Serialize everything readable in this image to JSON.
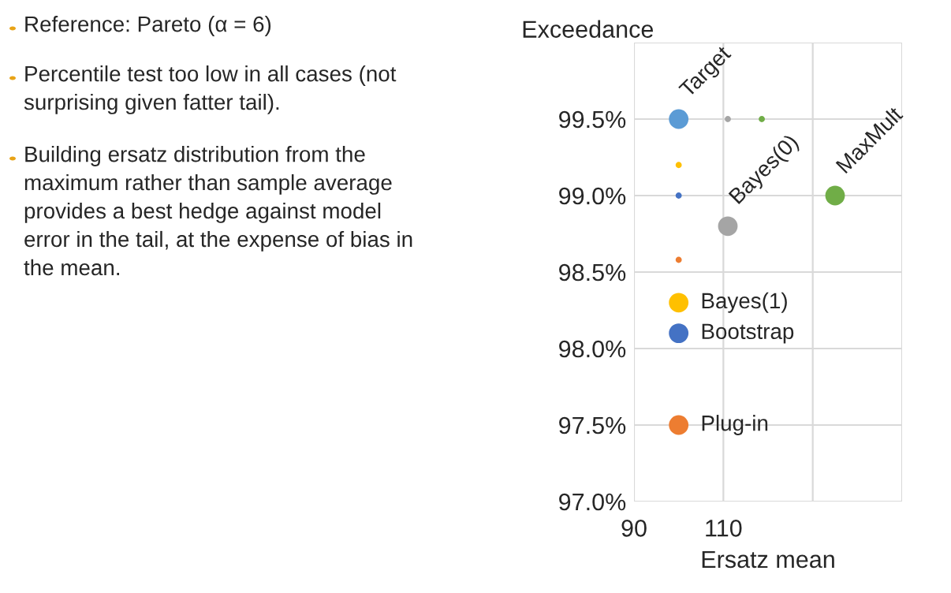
{
  "chart_data": [
    {
      "type": "other",
      "annotations": [
        "Reference: Pareto (α = 6)",
        "Percentile test too low in all cases (not surprising given fatter tail).",
        "Building ersatz distribution from the maximum rather than sample average provides a best hedge against model error in the tail, at the expense of bias in the mean."
      ]
    },
    {
      "type": "bubble",
      "xlabel": "Ersatz mean",
      "ylabel": "Exceedance",
      "xlim": [
        90,
        150
      ],
      "ylim": [
        97.0,
        100.0
      ],
      "xticks": [
        90,
        110,
        {
          "value": 130,
          "label": null
        },
        {
          "value": 150,
          "label": null
        }
      ],
      "yticks": [
        {
          "value": 97.0,
          "label": "97.0%"
        },
        {
          "value": 97.5,
          "label": "97.5%"
        },
        {
          "value": 98.0,
          "label": "98.0%"
        },
        {
          "value": 98.5,
          "label": "98.5%"
        },
        {
          "value": 99.0,
          "label": "99.0%"
        },
        {
          "value": 99.5,
          "label": "99.5%"
        },
        {
          "value": 100.0,
          "label": null
        }
      ],
      "grid": true,
      "legend": false,
      "series": [
        {
          "name": "Target",
          "color": "#5b9bd5",
          "x": [
            100
          ],
          "values": [
            99.5
          ],
          "sizes": [
            1
          ]
        },
        {
          "name": "Bayes(1)",
          "color": "#ffc000",
          "x": [
            100,
            100
          ],
          "values": [
            98.3,
            99.2
          ],
          "sizes": [
            1,
            0.1
          ]
        },
        {
          "name": "Bootstrap",
          "color": "#4472c4",
          "x": [
            100,
            100
          ],
          "values": [
            98.1,
            99.0
          ],
          "sizes": [
            1,
            0.1
          ]
        },
        {
          "name": "Plug-in",
          "color": "#ed7d31",
          "x": [
            100,
            100
          ],
          "values": [
            97.5,
            98.58
          ],
          "sizes": [
            1,
            0.1
          ]
        },
        {
          "name": "Bayes(0)",
          "color": "#a5a5a5",
          "x": [
            111,
            111
          ],
          "values": [
            98.8,
            99.5
          ],
          "sizes": [
            1,
            0.1
          ]
        },
        {
          "name": "MaxMult",
          "color": "#70ad47",
          "x": [
            135,
            118.6
          ],
          "values": [
            99.0,
            99.5
          ],
          "sizes": [
            1,
            0.1
          ]
        }
      ]
    }
  ]
}
